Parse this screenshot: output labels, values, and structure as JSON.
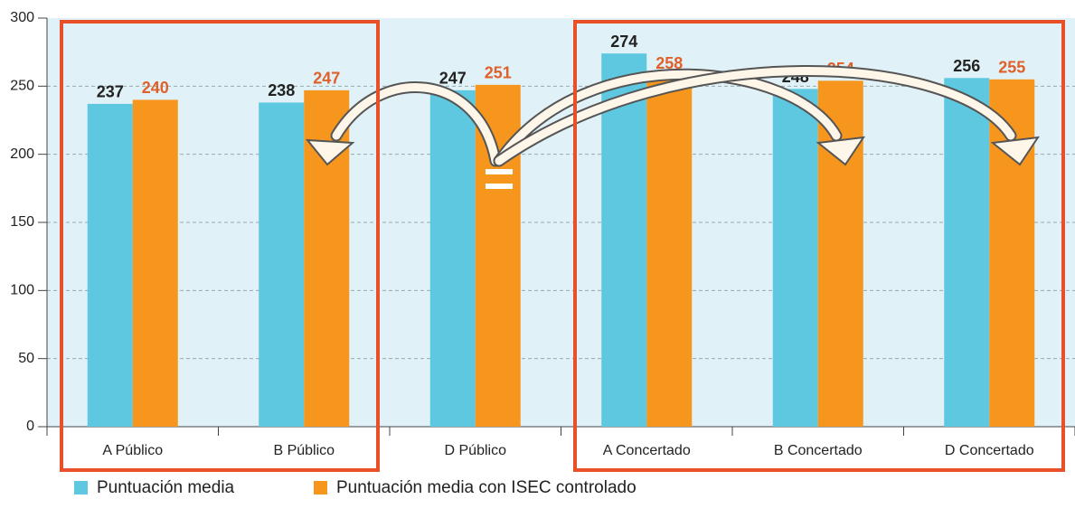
{
  "chart_data": {
    "type": "bar",
    "categories": [
      "A Público",
      "B Público",
      "D Público",
      "A Concertado",
      "B Concertado",
      "D Concertado"
    ],
    "series": [
      {
        "name": "Puntuación media",
        "color": "#5ec8e0",
        "values": [
          237,
          238,
          247,
          274,
          248,
          256
        ]
      },
      {
        "name": "Puntuación media con ISEC controlado",
        "color": "#f7961d",
        "values": [
          240,
          247,
          251,
          258,
          254,
          255
        ]
      }
    ],
    "ylim": [
      0,
      300
    ],
    "yticks": [
      0,
      50,
      100,
      150,
      200,
      250,
      300
    ],
    "grid": true
  }
}
